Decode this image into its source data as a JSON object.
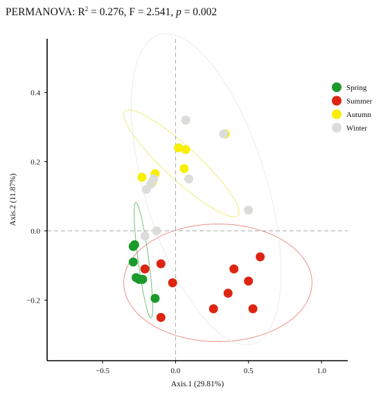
{
  "header": {
    "prefix": "PERMANOVA: R",
    "r2_exp": "2",
    "stats": " = 0.276, F = 2.541, ",
    "p_symbol": "p",
    "p_value": " = 0.002"
  },
  "chart_data": {
    "type": "scatter",
    "title": "PERMANOVA: R2 = 0.276, F = 2.541, p = 0.002",
    "xlabel": "Axis.1 (29.81%)",
    "ylabel": "Axis.2 (11.87%)",
    "xlim": [
      -0.88,
      1.18
    ],
    "ylim": [
      -0.375,
      0.555
    ],
    "xticks": [
      -0.5,
      0.0,
      0.5,
      1.0
    ],
    "xtick_labels": [
      "−0.5",
      "0.0",
      "0.5",
      "1.0"
    ],
    "yticks": [
      -0.2,
      0.0,
      0.2,
      0.4
    ],
    "ytick_labels": [
      "−0.2",
      "0.0",
      "0.2",
      "0.4"
    ],
    "reference_lines": {
      "x": 0,
      "y": 0,
      "style": "dashed"
    },
    "grid": false,
    "legend_position": "top-right",
    "series": [
      {
        "name": "Spring",
        "color": "#1a9a2a",
        "ellipse_color": "#6cc47a",
        "points": [
          [
            -0.28,
            -0.04
          ],
          [
            -0.29,
            -0.045
          ],
          [
            -0.29,
            -0.09
          ],
          [
            -0.27,
            -0.135
          ],
          [
            -0.25,
            -0.14
          ],
          [
            -0.235,
            -0.14
          ],
          [
            -0.225,
            -0.14
          ],
          [
            -0.14,
            -0.195
          ]
        ],
        "ellipse": {
          "center": [
            -0.22,
            -0.085
          ],
          "rx": 0.175,
          "ry": 0.035,
          "angle_deg": -72
        }
      },
      {
        "name": "Summer",
        "color": "#dd2511",
        "ellipse_color": "#ea8f88",
        "points": [
          [
            -0.21,
            -0.11
          ],
          [
            -0.1,
            -0.095
          ],
          [
            -0.02,
            -0.15
          ],
          [
            -0.1,
            -0.25
          ],
          [
            0.26,
            -0.225
          ],
          [
            0.36,
            -0.18
          ],
          [
            0.4,
            -0.11
          ],
          [
            0.5,
            -0.145
          ],
          [
            0.53,
            -0.225
          ],
          [
            0.58,
            -0.075
          ]
        ],
        "ellipse": {
          "center": [
            0.29,
            -0.15
          ],
          "rx": 0.645,
          "ry": 0.17,
          "angle_deg": 0
        }
      },
      {
        "name": "Autumn",
        "color": "#f7ee0a",
        "ellipse_color": "#eded7a",
        "points": [
          [
            -0.23,
            0.155
          ],
          [
            -0.16,
            0.14
          ],
          [
            -0.14,
            0.165
          ],
          [
            0.02,
            0.24
          ],
          [
            0.07,
            0.235
          ],
          [
            0.06,
            0.18
          ],
          [
            0.34,
            0.28
          ]
        ],
        "ellipse": {
          "center": [
            0.04,
            0.195
          ],
          "rx": 0.42,
          "ry": 0.06,
          "angle_deg": -20
        }
      },
      {
        "name": "Winter",
        "color": "#dcdcd8",
        "ellipse_color": "#ebebe8",
        "points": [
          [
            -0.17,
            0.135
          ],
          [
            -0.15,
            0.15
          ],
          [
            -0.2,
            0.12
          ],
          [
            -0.13,
            0.0
          ],
          [
            -0.21,
            -0.015
          ],
          [
            0.07,
            0.32
          ],
          [
            0.09,
            0.15
          ],
          [
            0.33,
            0.28
          ],
          [
            0.5,
            0.06
          ]
        ],
        "ellipse": {
          "center": [
            0.21,
            0.12
          ],
          "rx": 0.6,
          "ry": 0.325,
          "angle_deg": -38
        }
      }
    ]
  }
}
